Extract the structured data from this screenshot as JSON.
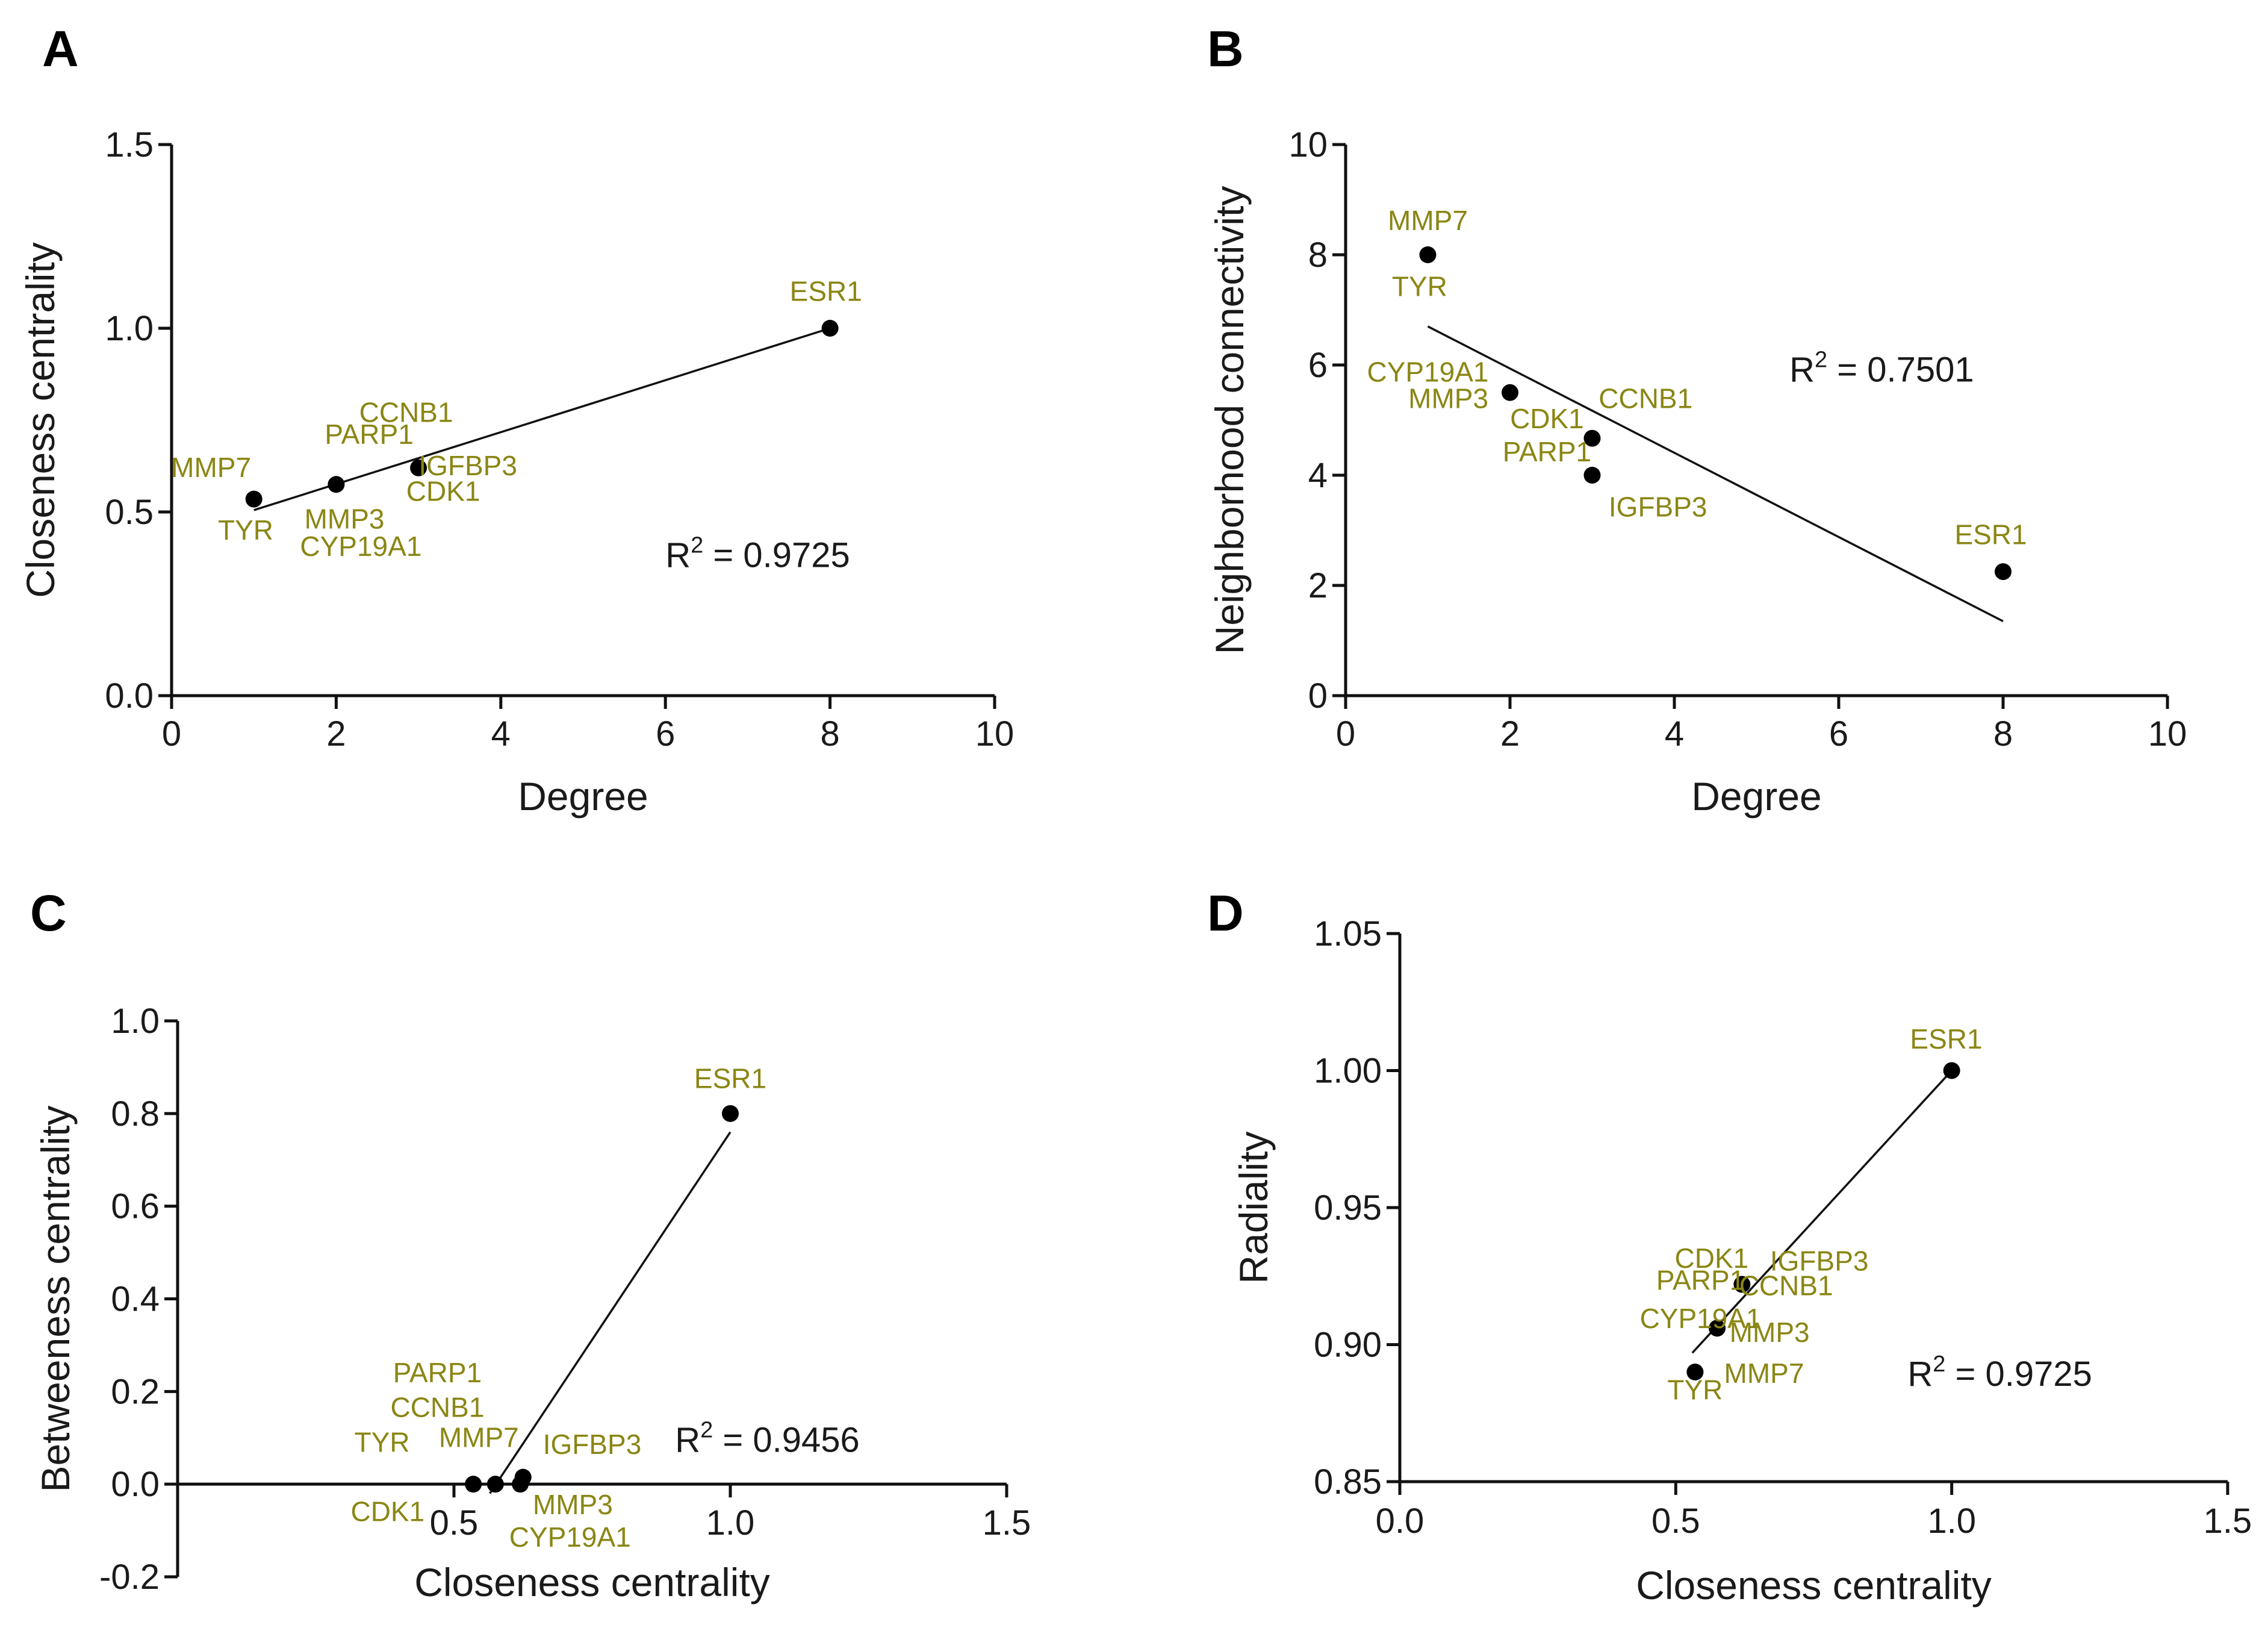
{
  "colors": {
    "gene_label": "#8a8614",
    "axis": "#111111",
    "point": "#000000"
  },
  "chart_data": [
    {
      "id": "A",
      "type": "scatter",
      "panel_letter": "A",
      "xlabel": "Degree",
      "ylabel": "Closeness centrality",
      "xlim": [
        0,
        10
      ],
      "ylim": [
        0,
        1.5
      ],
      "xticks": [
        0,
        2,
        4,
        6,
        8,
        10
      ],
      "xtick_labels": [
        "0",
        "2",
        "4",
        "6",
        "8",
        "10"
      ],
      "yticks": [
        0,
        0.5,
        1.0,
        1.5
      ],
      "ytick_labels": [
        "0.0",
        "0.5",
        "1.0",
        "1.5"
      ],
      "r2": {
        "base": "R",
        "sup": "2",
        "text": " = 0.9725",
        "x": 6.0,
        "y": 0.35
      },
      "points": [
        {
          "x": 1,
          "y": 0.535
        },
        {
          "x": 2,
          "y": 0.575
        },
        {
          "x": 3,
          "y": 0.62
        },
        {
          "x": 8,
          "y": 1.0
        }
      ],
      "fit_line": [
        [
          1,
          0.505
        ],
        [
          8,
          1.0
        ]
      ],
      "labels": [
        {
          "text": "MMP7",
          "x": 0.48,
          "y": 0.595
        },
        {
          "text": "TYR",
          "x": 0.9,
          "y": 0.425
        },
        {
          "text": "PARP1",
          "x": 2.4,
          "y": 0.685
        },
        {
          "text": "CCNB1",
          "x": 2.85,
          "y": 0.745
        },
        {
          "text": "IGFBP3",
          "x": 3.6,
          "y": 0.6
        },
        {
          "text": "CDK1",
          "x": 3.3,
          "y": 0.53
        },
        {
          "text": "MMP3",
          "x": 2.1,
          "y": 0.455
        },
        {
          "text": "CYP19A1",
          "x": 2.3,
          "y": 0.38
        },
        {
          "text": "ESR1",
          "x": 7.95,
          "y": 1.075
        }
      ]
    },
    {
      "id": "B",
      "type": "scatter",
      "panel_letter": "B",
      "xlabel": "Degree",
      "ylabel": "Neighborhood connectivity",
      "xlim": [
        0,
        10
      ],
      "ylim": [
        0,
        10
      ],
      "xticks": [
        0,
        2,
        4,
        6,
        8,
        10
      ],
      "xtick_labels": [
        "0",
        "2",
        "4",
        "6",
        "8",
        "10"
      ],
      "yticks": [
        0,
        2,
        4,
        6,
        8,
        10
      ],
      "ytick_labels": [
        "0",
        "2",
        "4",
        "6",
        "8",
        "10"
      ],
      "r2": {
        "base": "R",
        "sup": "2",
        "text": " = 0.7501",
        "x": 5.4,
        "y": 5.7
      },
      "points": [
        {
          "x": 1,
          "y": 8.0
        },
        {
          "x": 2,
          "y": 5.5
        },
        {
          "x": 3,
          "y": 4.67
        },
        {
          "x": 3,
          "y": 4.0
        },
        {
          "x": 8,
          "y": 2.25
        }
      ],
      "fit_line": [
        [
          1,
          6.7
        ],
        [
          8,
          1.35
        ]
      ],
      "labels": [
        {
          "text": "MMP7",
          "x": 1.0,
          "y": 8.45
        },
        {
          "text": "TYR",
          "x": 0.9,
          "y": 7.25
        },
        {
          "text": "CYP19A1",
          "x": 1.0,
          "y": 5.7
        },
        {
          "text": "MMP3",
          "x": 1.25,
          "y": 5.22
        },
        {
          "text": "CCNB1",
          "x": 3.65,
          "y": 5.22
        },
        {
          "text": "CDK1",
          "x": 2.45,
          "y": 4.85
        },
        {
          "text": "PARP1",
          "x": 2.45,
          "y": 4.25
        },
        {
          "text": "IGFBP3",
          "x": 3.8,
          "y": 3.25
        },
        {
          "text": "ESR1",
          "x": 7.85,
          "y": 2.75
        }
      ]
    },
    {
      "id": "C",
      "type": "scatter",
      "panel_letter": "C",
      "xlabel": "Closeness centrality",
      "ylabel": "Betweeness centrality",
      "xlim": [
        0,
        1.5
      ],
      "ylim": [
        -0.2,
        1.0
      ],
      "xticks": [
        0.5,
        1.0,
        1.5
      ],
      "xtick_labels": [
        "0.5",
        "1.0",
        "1.5"
      ],
      "yticks": [
        -0.2,
        0,
        0.2,
        0.4,
        0.6,
        0.8,
        1.0
      ],
      "ytick_labels": [
        "-0.2",
        "0.0",
        "0.2",
        "0.4",
        "0.6",
        "0.8",
        "1.0"
      ],
      "r2": {
        "base": "R",
        "sup": "2",
        "text": " = 0.9456",
        "x": 0.9,
        "y": 0.07
      },
      "points": [
        {
          "x": 0.535,
          "y": 0.0
        },
        {
          "x": 0.575,
          "y": 0.0
        },
        {
          "x": 0.62,
          "y": 0.0
        },
        {
          "x": 0.625,
          "y": 0.015
        },
        {
          "x": 1.0,
          "y": 0.8
        }
      ],
      "fit_line": [
        [
          0.565,
          -0.02
        ],
        [
          1.0,
          0.76
        ]
      ],
      "labels": [
        {
          "text": "PARP1",
          "x": 0.47,
          "y": 0.22
        },
        {
          "text": "CCNB1",
          "x": 0.47,
          "y": 0.145
        },
        {
          "text": "TYR",
          "x": 0.37,
          "y": 0.07
        },
        {
          "text": "MMP7",
          "x": 0.545,
          "y": 0.08
        },
        {
          "text": "IGFBP3",
          "x": 0.75,
          "y": 0.065
        },
        {
          "text": "CDK1",
          "x": 0.38,
          "y": -0.08
        },
        {
          "text": "MMP3",
          "x": 0.715,
          "y": -0.065
        },
        {
          "text": "CYP19A1",
          "x": 0.71,
          "y": -0.135
        },
        {
          "text": "ESR1",
          "x": 1.0,
          "y": 0.855
        }
      ]
    },
    {
      "id": "D",
      "type": "scatter",
      "panel_letter": "D",
      "xlabel": "Closeness centrality",
      "ylabel": "Radiality",
      "xlim": [
        0,
        1.5
      ],
      "ylim": [
        0.85,
        1.05
      ],
      "xticks": [
        0,
        0.5,
        1.0,
        1.5
      ],
      "xtick_labels": [
        "0.0",
        "0.5",
        "1.0",
        "1.5"
      ],
      "yticks": [
        0.85,
        0.9,
        0.95,
        1.0,
        1.05
      ],
      "ytick_labels": [
        "0.85",
        "0.90",
        "0.95",
        "1.00",
        "1.05"
      ],
      "r2": {
        "base": "R",
        "sup": "2",
        "text": " = 0.9725",
        "x": 0.92,
        "y": 0.885
      },
      "points": [
        {
          "x": 0.535,
          "y": 0.89
        },
        {
          "x": 0.575,
          "y": 0.906
        },
        {
          "x": 0.62,
          "y": 0.922
        },
        {
          "x": 1.0,
          "y": 1.0
        }
      ],
      "fit_line": [
        [
          0.53,
          0.897
        ],
        [
          1.0,
          1.0
        ]
      ],
      "labels": [
        {
          "text": "CDK1",
          "x": 0.565,
          "y": 0.928
        },
        {
          "text": "IGFBP3",
          "x": 0.76,
          "y": 0.927
        },
        {
          "text": "PARP1",
          "x": 0.545,
          "y": 0.92
        },
        {
          "text": "CCNB1",
          "x": 0.7,
          "y": 0.918
        },
        {
          "text": "CYP19A1",
          "x": 0.545,
          "y": 0.906
        },
        {
          "text": "MMP3",
          "x": 0.67,
          "y": 0.901
        },
        {
          "text": "TYR",
          "x": 0.535,
          "y": 0.88
        },
        {
          "text": "MMP7",
          "x": 0.66,
          "y": 0.886
        },
        {
          "text": "ESR1",
          "x": 0.99,
          "y": 1.008
        }
      ]
    }
  ]
}
